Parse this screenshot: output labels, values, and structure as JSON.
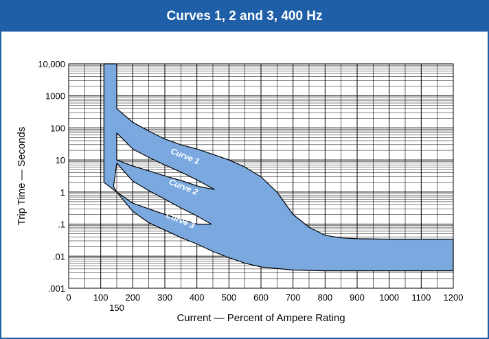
{
  "chart_data": {
    "type": "area",
    "title": "Curves 1, 2 and 3, 400 Hz",
    "xlabel": "Current — Percent of Ampere Rating",
    "ylabel": "Trip Time — Seconds",
    "x_scale": "linear",
    "y_scale": "log",
    "xlim": [
      0,
      1200
    ],
    "ylim": [
      0.001,
      10000
    ],
    "x_ticks": [
      "0",
      "100",
      "200",
      "300",
      "400",
      "500",
      "600",
      "700",
      "800",
      "900",
      "1000",
      "1100",
      "1200"
    ],
    "x_extra_tick": "150",
    "y_ticks": [
      ".001",
      ".01",
      ".1",
      "1",
      "10",
      "100",
      "1000",
      "10,000"
    ],
    "grid": true,
    "band_color": "#7ba9df",
    "band_border_color": "#000000",
    "outer_band": {
      "upper": [
        [
          150,
          10000
        ],
        [
          150,
          400
        ],
        [
          200,
          150
        ],
        [
          250,
          80
        ],
        [
          300,
          45
        ],
        [
          350,
          30
        ],
        [
          400,
          22
        ],
        [
          450,
          15
        ],
        [
          500,
          10
        ],
        [
          550,
          6
        ],
        [
          600,
          3
        ],
        [
          650,
          1
        ],
        [
          700,
          0.2
        ],
        [
          750,
          0.08
        ],
        [
          800,
          0.045
        ],
        [
          850,
          0.037
        ],
        [
          900,
          0.035
        ],
        [
          1000,
          0.034
        ],
        [
          1100,
          0.034
        ],
        [
          1200,
          0.034
        ]
      ],
      "lower": [
        [
          1200,
          0.0035
        ],
        [
          1000,
          0.0035
        ],
        [
          800,
          0.0035
        ],
        [
          700,
          0.0037
        ],
        [
          600,
          0.0046
        ],
        [
          550,
          0.006
        ],
        [
          500,
          0.009
        ],
        [
          450,
          0.014
        ],
        [
          400,
          0.024
        ],
        [
          350,
          0.038
        ],
        [
          300,
          0.065
        ],
        [
          250,
          0.11
        ],
        [
          200,
          0.25
        ],
        [
          150,
          1.0
        ],
        [
          110,
          2.0
        ],
        [
          110,
          10000
        ]
      ]
    },
    "gaps": [
      {
        "upper": [
          [
            150,
            70
          ],
          [
            200,
            22
          ],
          [
            250,
            12
          ],
          [
            300,
            7
          ],
          [
            350,
            4.2
          ],
          [
            400,
            2.4
          ],
          [
            455,
            1.2
          ]
        ],
        "lower": [
          [
            405,
            1.5
          ],
          [
            350,
            2.3
          ],
          [
            300,
            3.2
          ],
          [
            250,
            4.6
          ],
          [
            200,
            6.5
          ],
          [
            150,
            10
          ]
        ]
      },
      {
        "upper": [
          [
            150,
            8
          ],
          [
            200,
            2.2
          ],
          [
            250,
            1.1
          ],
          [
            300,
            0.6
          ],
          [
            350,
            0.32
          ],
          [
            400,
            0.18
          ],
          [
            445,
            0.1
          ]
        ],
        "lower": [
          [
            400,
            0.1
          ],
          [
            350,
            0.14
          ],
          [
            300,
            0.2
          ],
          [
            250,
            0.3
          ],
          [
            200,
            0.45
          ],
          [
            150,
            1.0
          ],
          [
            140,
            1.5
          ]
        ]
      }
    ],
    "annotations": [
      {
        "text": "Curve 1",
        "x": 360,
        "y": 11,
        "angle": 22
      },
      {
        "text": "Curve 2",
        "x": 355,
        "y": 1.2,
        "angle": 22
      },
      {
        "text": "Curve 3",
        "x": 345,
        "y": 0.11,
        "angle": 22
      }
    ]
  }
}
